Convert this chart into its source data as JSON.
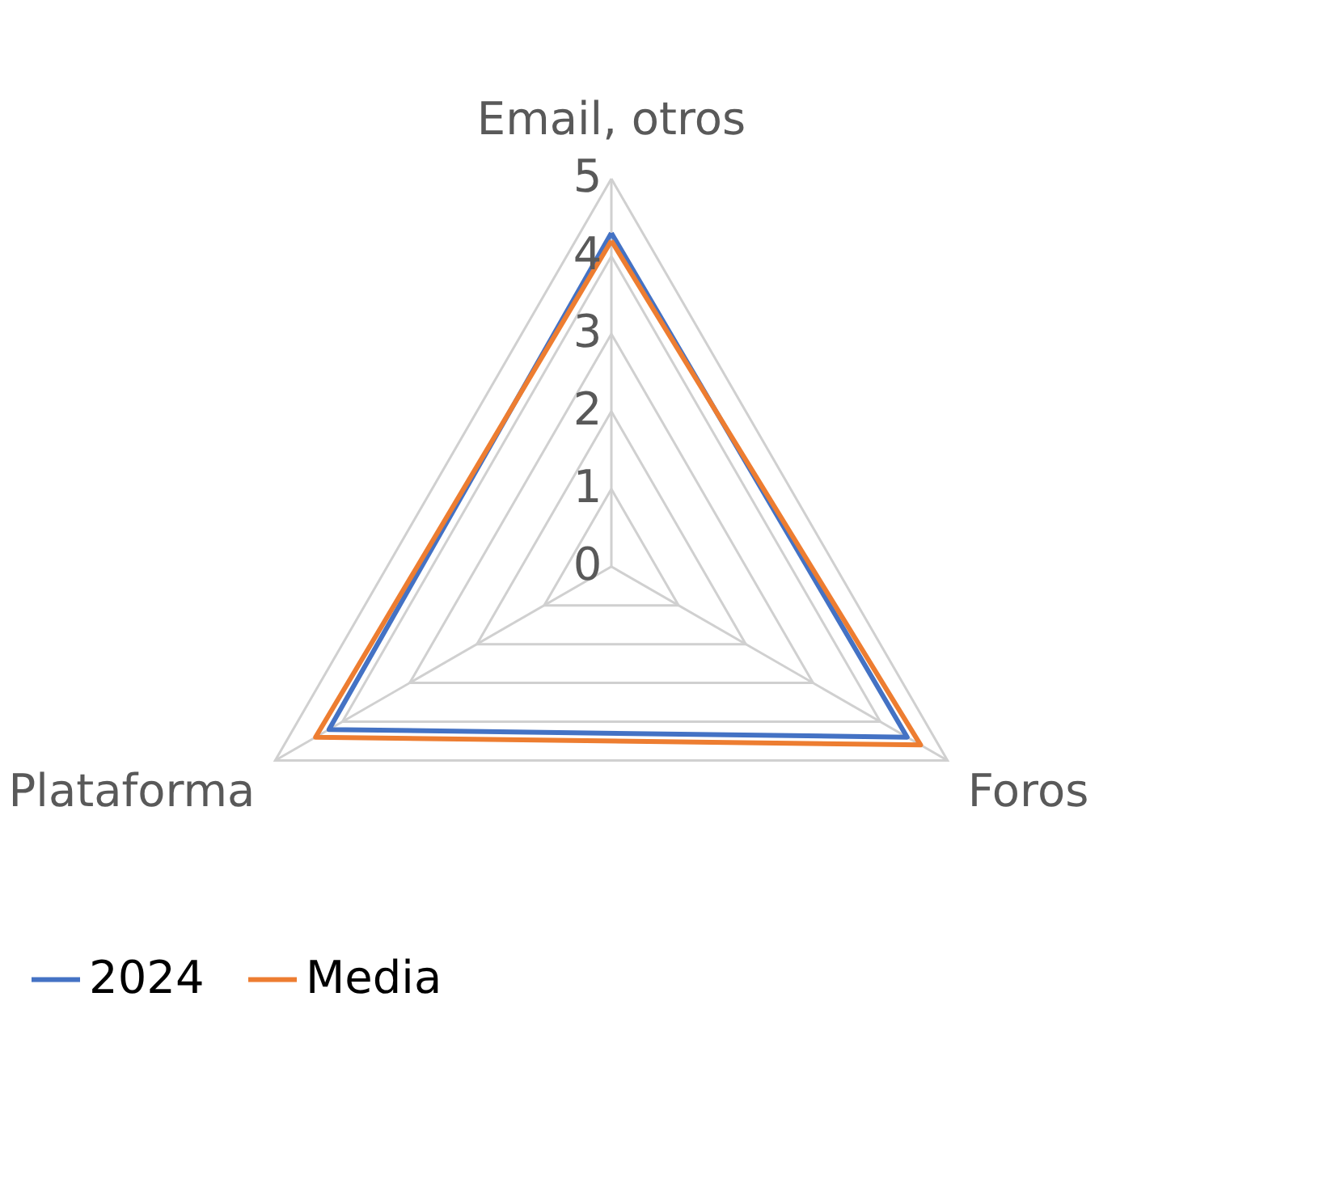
{
  "chart_data": {
    "type": "radar",
    "categories": [
      "Email, otros",
      "Foros",
      "Plataforma"
    ],
    "series": [
      {
        "name": "2024",
        "color": "#4472c4",
        "values": [
          4.3,
          4.4,
          4.2
        ]
      },
      {
        "name": "Media",
        "color": "#ed7d31",
        "values": [
          4.2,
          4.6,
          4.4
        ]
      }
    ],
    "ylim": [
      0,
      5
    ],
    "yticks": [
      0,
      1,
      2,
      3,
      4,
      5
    ],
    "grid": true,
    "legend": "bottom"
  }
}
